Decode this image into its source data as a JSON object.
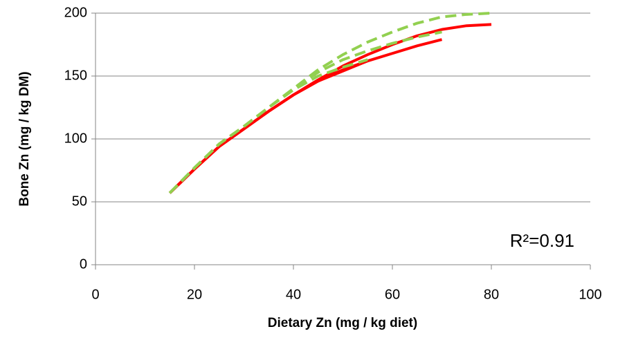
{
  "chart_data": {
    "type": "line",
    "annotation": "R²=0.91",
    "xlabel": "Dietary Zn (mg / kg diet)",
    "ylabel": "Bone Zn (mg / kg DM)",
    "xlim": [
      0,
      100
    ],
    "xticks": [
      0,
      20,
      40,
      60,
      80,
      100
    ],
    "ylim": [
      0,
      200
    ],
    "yticks": [
      0,
      50,
      100,
      150,
      200
    ],
    "grid": true,
    "series": [
      {
        "color": "#ff0000",
        "line_style": "solid",
        "x": [
          15,
          20,
          25,
          30,
          35,
          40,
          45,
          50,
          55,
          60,
          65,
          70,
          75,
          80
        ],
        "values": [
          57,
          76,
          94,
          108,
          122,
          135,
          147,
          158,
          167,
          175,
          182,
          187,
          190,
          191
        ]
      },
      {
        "color": "#ff0000",
        "line_style": "solid",
        "x": [
          15,
          20,
          25,
          30,
          35,
          40,
          45,
          50,
          55,
          60,
          65,
          70
        ],
        "values": [
          57,
          76,
          94,
          108,
          122,
          135,
          146,
          155,
          162,
          168,
          174,
          179
        ]
      },
      {
        "color": "#ff0000",
        "line_style": "solid",
        "x": [
          15,
          20,
          25,
          30,
          35,
          40,
          45,
          50,
          55
        ],
        "values": [
          57,
          76,
          94,
          108,
          122,
          135,
          146,
          154,
          162
        ]
      },
      {
        "color": "#92d050",
        "line_style": "dashed",
        "x": [
          15,
          20,
          25,
          30,
          35,
          40,
          45,
          50,
          55,
          60,
          65,
          70,
          75,
          80
        ],
        "values": [
          57,
          77,
          96,
          110,
          125,
          140,
          155,
          167,
          177,
          185,
          192,
          197,
          199,
          200
        ]
      },
      {
        "color": "#92d050",
        "line_style": "dashed",
        "x": [
          15,
          20,
          25,
          30,
          35,
          40,
          45,
          50,
          55,
          60,
          65,
          70
        ],
        "values": [
          57,
          77,
          96,
          110,
          125,
          140,
          153,
          163,
          170,
          176,
          181,
          185
        ]
      },
      {
        "color": "#92d050",
        "line_style": "dashed",
        "x": [
          15,
          20,
          25,
          30,
          35,
          40,
          45,
          50,
          55
        ],
        "values": [
          57,
          77,
          96,
          110,
          125,
          139,
          150,
          157,
          163
        ]
      }
    ]
  }
}
